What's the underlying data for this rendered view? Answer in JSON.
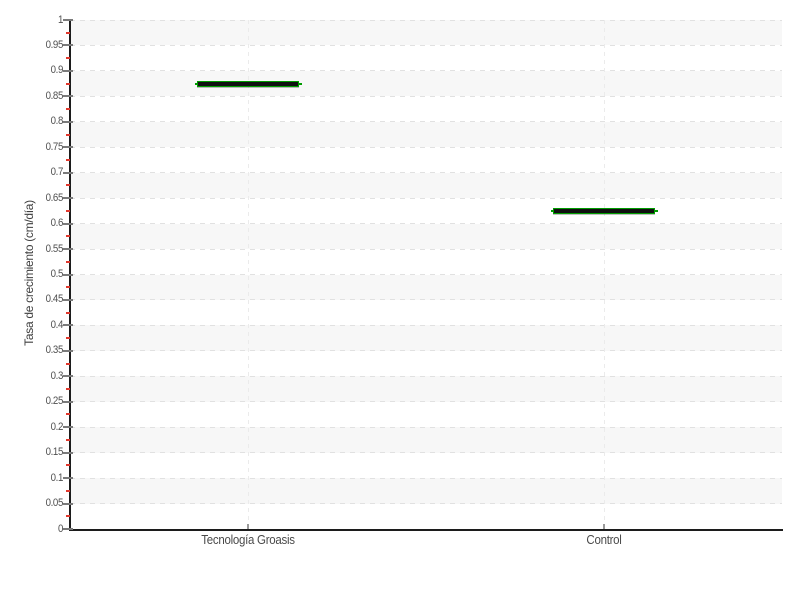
{
  "page": {
    "title": "",
    "background": "#ffffff"
  },
  "chart_data": {
    "type": "scatter",
    "marker_style": "flat horizontal dash (candlestick-like: black body with green outline and green end nubs)",
    "categories": [
      "Tecnología Groasis",
      "Control"
    ],
    "values": [
      0.875,
      0.625
    ],
    "title": "",
    "xlabel": "",
    "ylabel": "Tasa de crecimiento (cm/día)",
    "ylim": [
      0,
      1
    ],
    "y_tick_step": 0.05,
    "y_minor_tick_step": 0.025,
    "y_tick_labels": [
      "1",
      "0.95",
      "0.9",
      "0.85",
      "0.8",
      "0.75",
      "0.7",
      "0.65",
      "0.6",
      "0.55",
      "0.5",
      "0.45",
      "0.4",
      "0.35",
      "0.3",
      "0.25",
      "0.2",
      "0.15",
      "0.1",
      "0.05",
      "0"
    ],
    "grid": "horizontal dashed gridlines every 0.05; alternating shaded horizontal bands; one vertical dashed gridline per category; legend off",
    "legend": "none"
  },
  "colors": {
    "background": "#ffffff",
    "band_fill": "#f7f7f7",
    "gridline": "#e1e1e1",
    "vertical_gridline": "#ebebeb",
    "axis_line": "#1c1c1c",
    "major_tick": "#7a7a7a",
    "minor_tick": "#e0392e",
    "tick_label": "#4f4f4f",
    "category_label": "#4a4a4a",
    "axis_title": "#404040",
    "category_tick": "#9a9a9a",
    "marker_body": "#101010",
    "marker_outline": "#009c00"
  }
}
